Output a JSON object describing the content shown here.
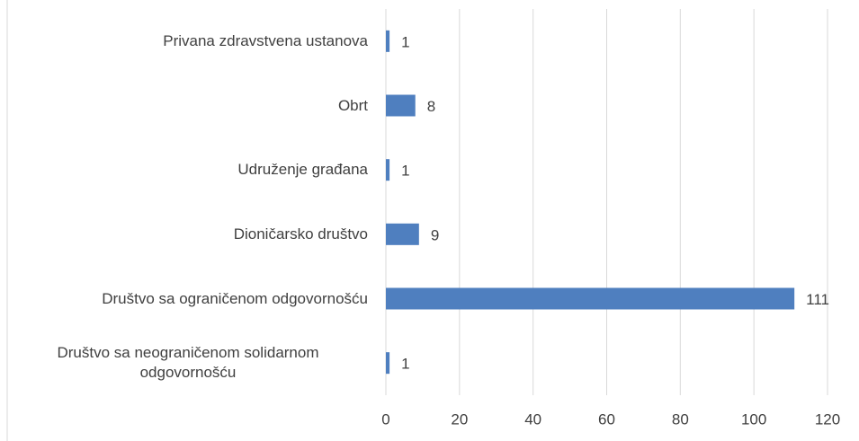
{
  "chart_data": {
    "type": "barh",
    "categories": [
      "Privana zdravstvena ustanova",
      "Obrt",
      "Udruženje građana",
      "Dioničarsko društvo",
      "Društvo sa ograničenom odgovornošću",
      "Društvo sa neograničenom solidarnom odgovornošću"
    ],
    "values": [
      1,
      8,
      1,
      9,
      111,
      1
    ],
    "color": "#4f7fbf",
    "xlim": [
      0,
      120
    ],
    "xticks": [
      0,
      20,
      40,
      60,
      80,
      100,
      120
    ],
    "grid": true
  }
}
